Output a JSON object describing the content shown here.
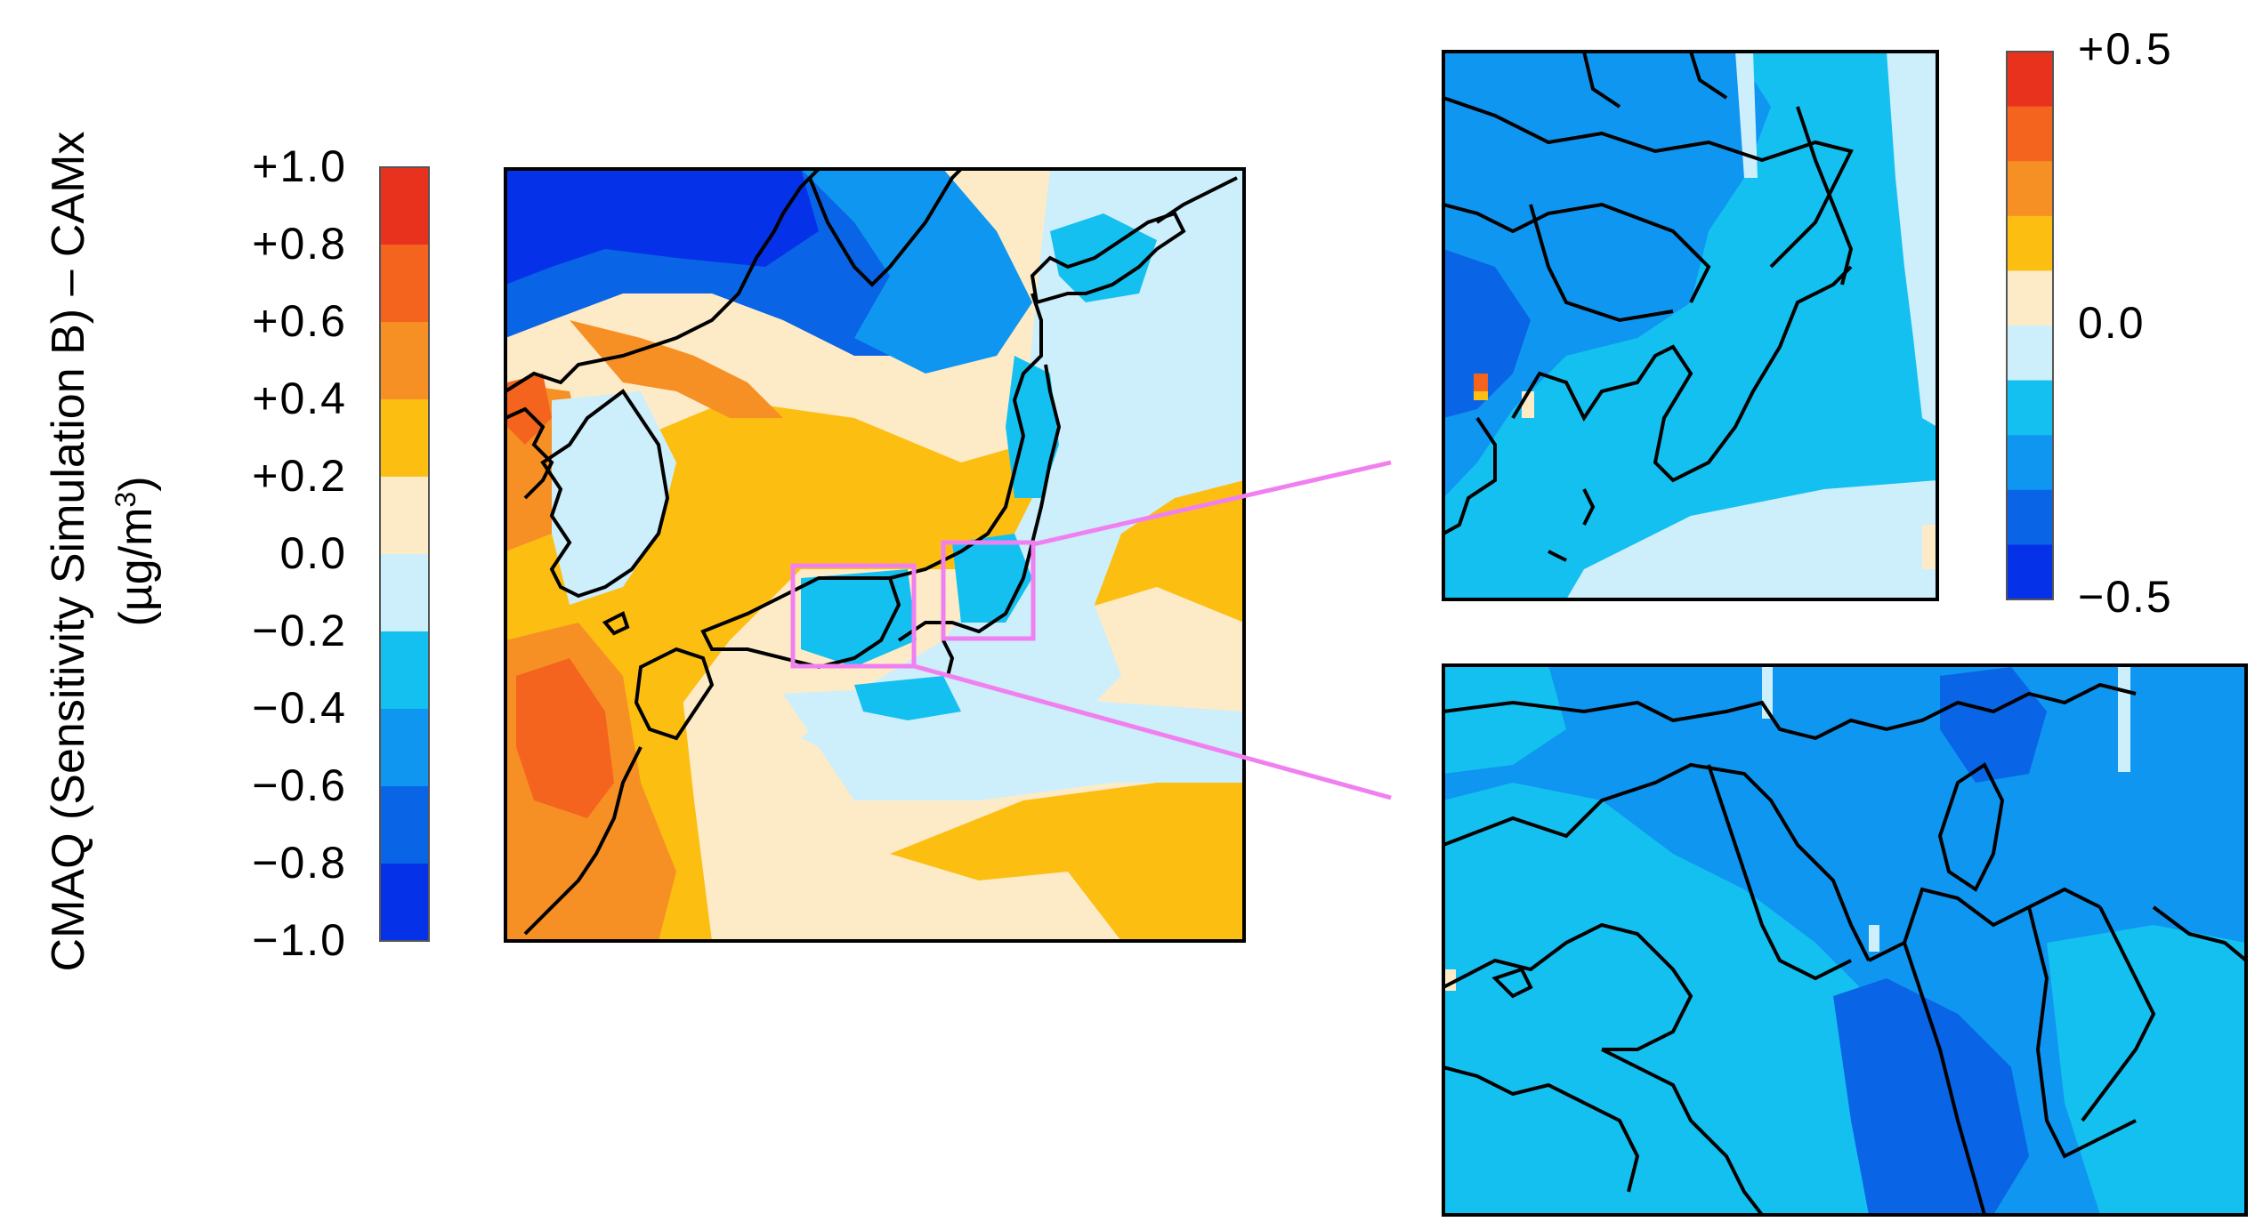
{
  "axis_label": {
    "line1": "CMAQ (Sensitivity Simulation B) – CAMx",
    "line2": "(µg/m",
    "line2_sup": "3",
    "line2_end": ")"
  },
  "main_colorbar": {
    "ticks": [
      "+1.0",
      "+0.8",
      "+0.6",
      "+0.4",
      "+0.2",
      "0.0",
      "−0.2",
      "−0.4",
      "−0.6",
      "−0.8",
      "−1.0"
    ],
    "colors": [
      "#e8321e",
      "#f4641e",
      "#f69024",
      "#fdbe12",
      "#fdebc8",
      "#cdeefb",
      "#14c0f0",
      "#0f96f0",
      "#0a64e6",
      "#0532e8"
    ]
  },
  "small_colorbar": {
    "ticks": [
      "+0.5",
      "0.0",
      "−0.5"
    ],
    "colors": [
      "#e8321e",
      "#f4641e",
      "#f69024",
      "#fdbe12",
      "#fdebc8",
      "#cdeefb",
      "#14c0f0",
      "#0f96f0",
      "#0a64e6",
      "#0532e8"
    ]
  },
  "colors": {
    "zoom_box": "#f080f0",
    "coastline": "#000000"
  }
}
